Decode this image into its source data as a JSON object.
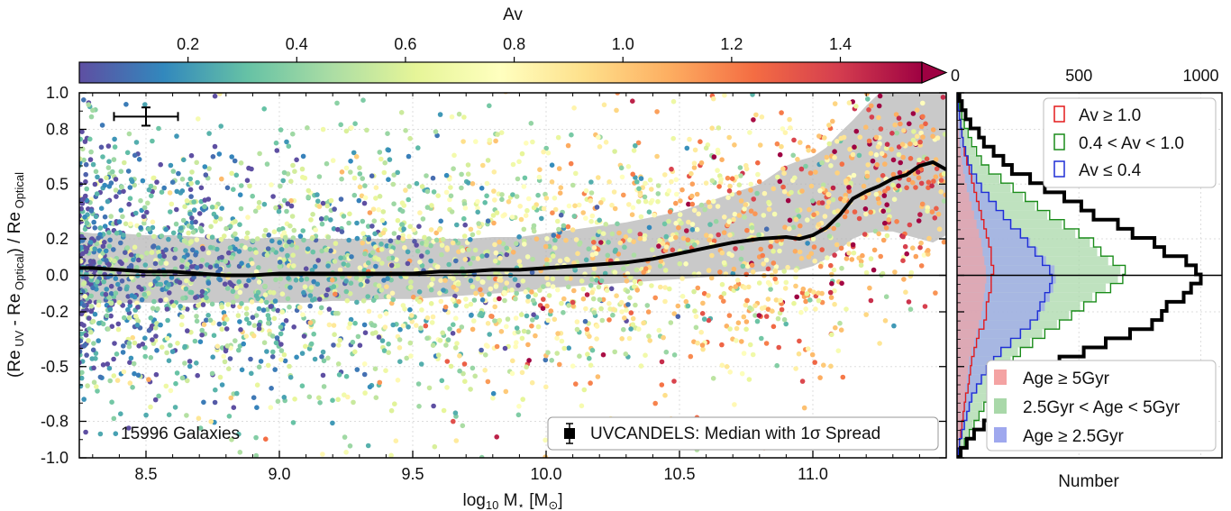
{
  "colors": {
    "axis": "#000000",
    "grid": "#dddddd",
    "median": "#000000",
    "band": "#b4b4b4",
    "cmap": [
      "#5e4fa2",
      "#3288bd",
      "#66c2a5",
      "#abdda4",
      "#e6f598",
      "#ffffbf",
      "#fee08b",
      "#fdae61",
      "#f46d43",
      "#d53e4f",
      "#9e0142"
    ],
    "red": "#e31a1c",
    "green": "#1a8c1a",
    "blue": "#1f2fd6"
  },
  "colorbar": {
    "label": "Av",
    "ticks": [
      "0.2",
      "0.4",
      "0.6",
      "0.8",
      "1.0",
      "1.2",
      "1.4"
    ],
    "tick_values": [
      0.2,
      0.4,
      0.6,
      0.8,
      1.0,
      1.2,
      1.4
    ],
    "range": [
      0.0,
      1.55
    ],
    "extend": "max"
  },
  "chart_data": [
    {
      "type": "scatter",
      "xlabel_main": "log",
      "xlabel_sub": "10",
      "xlabel_m": " M",
      "xlabel_star": "⋆",
      "xlabel_unit_open": " [M",
      "xlabel_sun": "⊙",
      "xlabel_unit_close": "]",
      "ylabel_open": "(Re",
      "ylabel_uv": " UV",
      "ylabel_minus": " - Re",
      "ylabel_opt": " Optical",
      "ylabel_mid": ") / Re",
      "ylabel_opt2": " Optical",
      "xlim": [
        8.25,
        11.5
      ],
      "ylim": [
        -1.0,
        1.0
      ],
      "x_ticks": [
        "8.5",
        "9.0",
        "9.5",
        "10.0",
        "10.5",
        "11.0"
      ],
      "x_tick_values": [
        8.5,
        9.0,
        9.5,
        10.0,
        10.5,
        11.0
      ],
      "y_ticks": [
        "1.0",
        "0.8",
        "0.5",
        "0.2",
        "0.0",
        "-0.2",
        "-0.5",
        "-0.8",
        "-1.0"
      ],
      "y_tick_values": [
        1.0,
        0.8,
        0.5,
        0.2,
        0.0,
        -0.2,
        -0.5,
        -0.8,
        -1.0
      ],
      "grid": true,
      "reference_line_y": 0.0,
      "annotation": "15996 Galaxies",
      "legend": {
        "label": "UVCANDELS: Median with 1σ Spread",
        "placement": "bottom-right"
      },
      "error_bar": {
        "x": 8.5,
        "y": 0.87,
        "xerr": 0.12,
        "yerr": 0.05
      },
      "median": {
        "x": [
          8.25,
          8.3,
          8.4,
          8.5,
          8.6,
          8.7,
          8.8,
          8.9,
          9.0,
          9.1,
          9.2,
          9.3,
          9.4,
          9.5,
          9.6,
          9.7,
          9.8,
          9.9,
          10.0,
          10.1,
          10.2,
          10.3,
          10.4,
          10.5,
          10.6,
          10.7,
          10.8,
          10.9,
          10.95,
          11.0,
          11.05,
          11.1,
          11.15,
          11.2,
          11.25,
          11.3,
          11.35,
          11.4,
          11.45,
          11.5
        ],
        "y": [
          0.04,
          0.04,
          0.03,
          0.02,
          0.02,
          0.01,
          0.0,
          0.0,
          0.01,
          0.01,
          0.01,
          0.01,
          0.01,
          0.01,
          0.02,
          0.02,
          0.03,
          0.03,
          0.04,
          0.05,
          0.06,
          0.07,
          0.09,
          0.12,
          0.15,
          0.18,
          0.2,
          0.21,
          0.2,
          0.22,
          0.26,
          0.33,
          0.42,
          0.46,
          0.49,
          0.53,
          0.55,
          0.6,
          0.62,
          0.58
        ]
      },
      "band_upper": [
        0.24,
        0.23,
        0.23,
        0.22,
        0.22,
        0.21,
        0.2,
        0.2,
        0.21,
        0.2,
        0.2,
        0.2,
        0.2,
        0.2,
        0.2,
        0.2,
        0.21,
        0.21,
        0.23,
        0.25,
        0.27,
        0.29,
        0.32,
        0.35,
        0.4,
        0.45,
        0.5,
        0.6,
        0.63,
        0.65,
        0.7,
        0.78,
        0.85,
        0.93,
        1.0,
        1.0,
        1.0,
        1.0,
        1.0,
        1.0
      ],
      "band_lower": [
        -0.16,
        -0.15,
        -0.15,
        -0.15,
        -0.15,
        -0.15,
        -0.15,
        -0.15,
        -0.15,
        -0.15,
        -0.14,
        -0.14,
        -0.13,
        -0.13,
        -0.12,
        -0.11,
        -0.1,
        -0.09,
        -0.07,
        -0.06,
        -0.05,
        -0.04,
        -0.03,
        -0.02,
        -0.01,
        0.0,
        0.02,
        0.03,
        0.03,
        0.05,
        0.09,
        0.14,
        0.2,
        0.23,
        0.24,
        0.24,
        0.22,
        0.2,
        0.18,
        0.22
      ],
      "scatter_count": 15996
    },
    {
      "type": "histogram",
      "xlabel": "Number",
      "x_ticks": [
        "0",
        "500",
        "1000"
      ],
      "x_tick_values": [
        0,
        500,
        1000
      ],
      "xlim": [
        0,
        1000
      ],
      "orientation": "horizontal",
      "bin_centers": [
        -0.97,
        -0.92,
        -0.87,
        -0.82,
        -0.77,
        -0.72,
        -0.67,
        -0.62,
        -0.57,
        -0.52,
        -0.47,
        -0.42,
        -0.37,
        -0.32,
        -0.27,
        -0.22,
        -0.17,
        -0.12,
        -0.07,
        -0.02,
        0.03,
        0.08,
        0.13,
        0.18,
        0.23,
        0.28,
        0.33,
        0.38,
        0.43,
        0.48,
        0.53,
        0.58,
        0.63,
        0.68,
        0.73,
        0.78,
        0.83,
        0.88,
        0.93,
        0.98
      ],
      "total": [
        15,
        40,
        70,
        110,
        140,
        190,
        235,
        275,
        315,
        370,
        420,
        520,
        610,
        710,
        800,
        840,
        860,
        930,
        960,
        1000,
        980,
        940,
        850,
        810,
        720,
        660,
        560,
        510,
        440,
        360,
        300,
        225,
        190,
        150,
        110,
        90,
        55,
        35,
        20,
        10
      ],
      "av_series": [
        {
          "name": "Av ≥ 1.0",
          "color": "#e31a1c",
          "values": [
            5,
            10,
            15,
            20,
            25,
            30,
            35,
            45,
            50,
            55,
            60,
            70,
            80,
            90,
            110,
            120,
            120,
            130,
            140,
            140,
            150,
            140,
            140,
            130,
            120,
            110,
            100,
            90,
            80,
            70,
            60,
            50,
            40,
            30,
            25,
            20,
            15,
            10,
            5,
            5
          ]
        },
        {
          "name": "0.4 < Av < 1.0",
          "color": "#1a8c1a",
          "values": [
            10,
            30,
            50,
            70,
            90,
            110,
            130,
            150,
            170,
            200,
            230,
            260,
            310,
            360,
            420,
            470,
            520,
            570,
            630,
            680,
            690,
            640,
            590,
            560,
            500,
            440,
            380,
            330,
            280,
            230,
            180,
            130,
            100,
            80,
            60,
            45,
            30,
            20,
            10,
            5
          ]
        },
        {
          "name": "Av ≤ 0.4",
          "color": "#1f2fd6",
          "values": [
            5,
            10,
            20,
            30,
            40,
            50,
            60,
            80,
            100,
            120,
            150,
            180,
            220,
            260,
            300,
            330,
            340,
            360,
            380,
            390,
            380,
            350,
            320,
            290,
            260,
            220,
            190,
            160,
            130,
            100,
            80,
            60,
            45,
            35,
            25,
            20,
            15,
            10,
            5,
            3
          ]
        }
      ],
      "age_series": [
        {
          "name": "Age ≥ 5Gyr",
          "color": "#f4a3a3",
          "values": [
            3,
            6,
            10,
            15,
            20,
            25,
            30,
            35,
            40,
            45,
            50,
            60,
            70,
            80,
            90,
            100,
            105,
            110,
            115,
            120,
            118,
            112,
            105,
            100,
            90,
            80,
            70,
            60,
            50,
            40,
            32,
            25,
            20,
            15,
            10,
            8,
            5,
            3,
            2,
            1
          ]
        },
        {
          "name": "2.5Gyr < Age < 5Gyr",
          "color": "#a9d8a9",
          "values": [
            8,
            25,
            45,
            65,
            85,
            105,
            125,
            145,
            165,
            190,
            220,
            250,
            300,
            350,
            410,
            460,
            505,
            555,
            610,
            660,
            670,
            620,
            575,
            545,
            485,
            430,
            370,
            320,
            270,
            220,
            175,
            125,
            95,
            75,
            55,
            40,
            28,
            18,
            9,
            4
          ]
        },
        {
          "name": "Age ≥ 2.5Gyr",
          "color": "#9fa8ee",
          "values": [
            6,
            12,
            22,
            34,
            45,
            55,
            66,
            85,
            105,
            125,
            155,
            185,
            225,
            265,
            305,
            340,
            360,
            380,
            395,
            405,
            400,
            365,
            330,
            300,
            265,
            225,
            195,
            165,
            135,
            105,
            82,
            62,
            46,
            36,
            26,
            20,
            14,
            9,
            5,
            3
          ]
        }
      ],
      "legend_top": {
        "placement": "top-right"
      },
      "legend_bottom": {
        "placement": "bottom-right"
      }
    }
  ]
}
